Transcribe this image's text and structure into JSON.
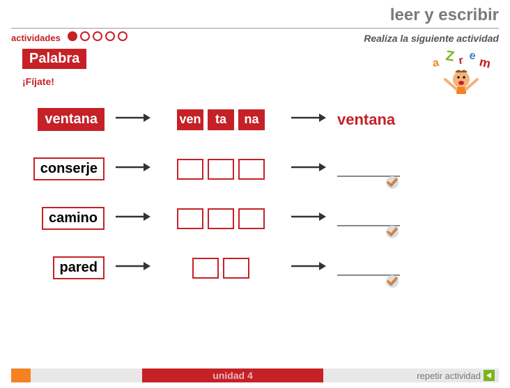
{
  "header": {
    "title": "leer y escribir",
    "instruction": "Realiza la siguiente actividad"
  },
  "activities": {
    "label": "actividades",
    "total": 5,
    "current": 1
  },
  "badge": "Palabra",
  "fijate": "¡Fíjate!",
  "colors": {
    "brand": "#c52127",
    "orange": "#f58220",
    "green": "#7ab51d",
    "grey_text": "#7a7a7a"
  },
  "rows": [
    {
      "word": "ventana",
      "word_filled": true,
      "syllables": [
        "ven",
        "ta",
        "na"
      ],
      "syl_filled": true,
      "answer": "ventana",
      "answer_shown": true,
      "check": false
    },
    {
      "word": "conserje",
      "word_filled": false,
      "syllables": [
        "",
        "",
        ""
      ],
      "syl_filled": false,
      "answer": "",
      "answer_shown": false,
      "check": true
    },
    {
      "word": "camino",
      "word_filled": false,
      "syllables": [
        "",
        "",
        ""
      ],
      "syl_filled": false,
      "answer": "",
      "answer_shown": false,
      "check": true
    },
    {
      "word": "pared",
      "word_filled": false,
      "syllables": [
        "",
        ""
      ],
      "syl_filled": false,
      "answer": "",
      "answer_shown": false,
      "check": true
    }
  ],
  "footer": {
    "unit": "unidad 4",
    "repeat": "repetir actividad"
  },
  "mascot_letters": [
    "a",
    "Z",
    "r",
    "e",
    "m"
  ],
  "mascot_colors": [
    "#f58220",
    "#7ab51d",
    "#c52127",
    "#3b7bbf",
    "#c52127"
  ]
}
